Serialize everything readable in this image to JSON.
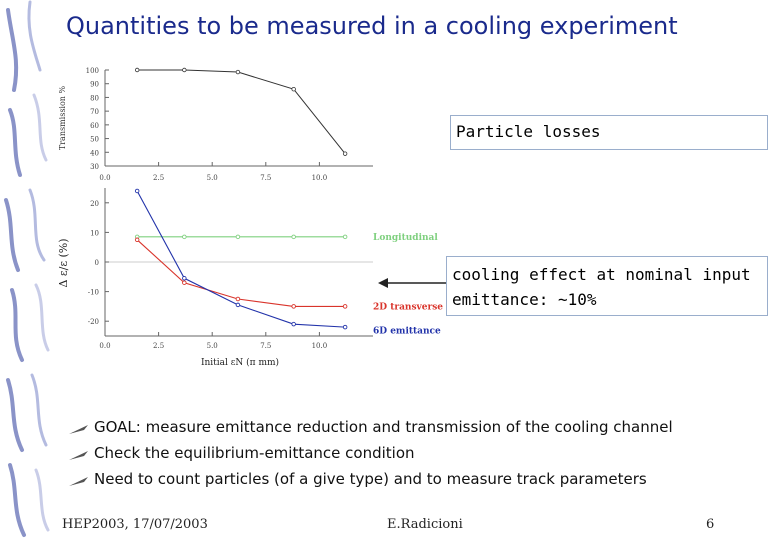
{
  "title": "Quantities to be measured in a cooling experiment",
  "callouts": {
    "losses": "Particle losses",
    "cooling_line1": "cooling effect at nominal input",
    "cooling_line2": "emittance: ~10%"
  },
  "bullets": [
    "GOAL: measure emittance reduction and transmission of the cooling channel",
    "Check the equilibrium-emittance condition",
    "Need to count particles (of a give type) and to measure track parameters"
  ],
  "footer": {
    "left": "HEP2003, 17/07/2003",
    "center": "E.Radicioni",
    "right": "6"
  },
  "colors": {
    "title": "#1a2a8c",
    "longitudinal": "#7fd07f",
    "transverse": "#d9342b",
    "sixd": "#2233aa",
    "transmission": "#333333",
    "sidebar": "#8a93c8"
  },
  "chart_data": [
    {
      "type": "line",
      "xlabel": "",
      "ylabel": "Transmission %",
      "xlim": [
        0,
        12.5
      ],
      "ylim": [
        30,
        100
      ],
      "xticks": [
        "0.0",
        "2.5",
        "5.0",
        "7.5",
        "10.0"
      ],
      "yticks": [
        "100",
        "90",
        "80",
        "70",
        "60",
        "50",
        "40",
        "30"
      ],
      "series": [
        {
          "x": [
            1.5,
            3.7,
            6.2,
            8.8,
            11.2
          ],
          "values": [
            100,
            100,
            98.5,
            86,
            39
          ]
        }
      ]
    },
    {
      "type": "line",
      "xlabel": "Initial εN (π mm)",
      "ylabel": "Δ ε/ε (%)",
      "xlim": [
        0,
        12.5
      ],
      "ylim": [
        -25,
        25
      ],
      "xticks": [
        "0.0",
        "2.5",
        "5.0",
        "7.5",
        "10.0"
      ],
      "yticks": [
        "20",
        "10",
        "0",
        "-10",
        "-20"
      ],
      "series": [
        {
          "name": "Longitudinal",
          "x": [
            1.5,
            3.7,
            6.2,
            8.8,
            11.2
          ],
          "values": [
            8.5,
            8.5,
            8.5,
            8.5,
            8.5
          ]
        },
        {
          "name": "2D transverse",
          "x": [
            1.5,
            3.7,
            6.2,
            8.8,
            11.2
          ],
          "values": [
            7.5,
            -7,
            -12.5,
            -15,
            -15
          ]
        },
        {
          "name": "6D emittance",
          "x": [
            1.5,
            3.7,
            6.2,
            8.8,
            11.2
          ],
          "values": [
            24,
            -5.5,
            -14.5,
            -21,
            -22
          ]
        }
      ]
    }
  ]
}
